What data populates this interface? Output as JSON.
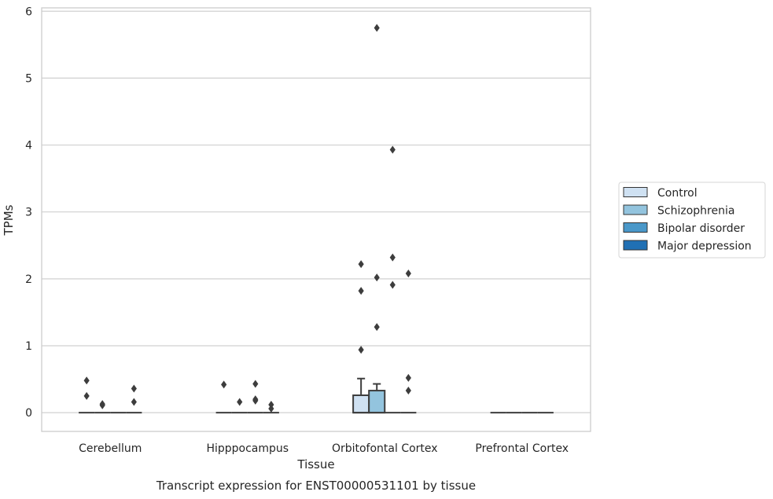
{
  "chart_data": {
    "type": "box",
    "title": "",
    "caption": "Transcript expression for ENST00000531101 by tissue",
    "xlabel": "Tissue",
    "ylabel": "TPMs",
    "ylim": [
      -0.28,
      6.05
    ],
    "yticks": [
      0,
      1,
      2,
      3,
      4,
      5,
      6
    ],
    "grid": true,
    "legend_position": "right",
    "categories": [
      "Cerebellum",
      "Hipppocampus",
      "Orbitofontal Cortex",
      "Prefrontal Cortex"
    ],
    "series": [
      {
        "name": "Control",
        "color": "#cfe1f2",
        "boxes": [
          {
            "q1": 0,
            "median": 0,
            "q3": 0,
            "whisker_low": 0,
            "whisker_high": 0,
            "outliers": [
              0.48,
              0.25
            ]
          },
          {
            "q1": 0,
            "median": 0,
            "q3": 0,
            "whisker_low": 0,
            "whisker_high": 0,
            "outliers": [
              0.42
            ]
          },
          {
            "q1": 0,
            "median": 0,
            "q3": 0.26,
            "whisker_low": 0,
            "whisker_high": 0.51,
            "outliers": [
              2.22,
              1.82,
              0.94
            ]
          },
          {
            "q1": 0,
            "median": 0,
            "q3": 0,
            "whisker_low": 0,
            "whisker_high": 0,
            "outliers": []
          }
        ]
      },
      {
        "name": "Schizophrenia",
        "color": "#93c4de",
        "boxes": [
          {
            "q1": 0,
            "median": 0,
            "q3": 0,
            "whisker_low": 0,
            "whisker_high": 0,
            "outliers": [
              0.13,
              0.11
            ]
          },
          {
            "q1": 0,
            "median": 0,
            "q3": 0,
            "whisker_low": 0,
            "whisker_high": 0,
            "outliers": [
              0.16
            ]
          },
          {
            "q1": 0,
            "median": 0,
            "q3": 0.33,
            "whisker_low": 0,
            "whisker_high": 0.43,
            "outliers": [
              5.75,
              2.02,
              1.28
            ]
          },
          {
            "q1": 0,
            "median": 0,
            "q3": 0,
            "whisker_low": 0,
            "whisker_high": 0,
            "outliers": []
          }
        ]
      },
      {
        "name": "Bipolar disorder",
        "color": "#4a98c9",
        "boxes": [
          {
            "q1": 0,
            "median": 0,
            "q3": 0,
            "whisker_low": 0,
            "whisker_high": 0,
            "outliers": []
          },
          {
            "q1": 0,
            "median": 0,
            "q3": 0,
            "whisker_low": 0,
            "whisker_high": 0,
            "outliers": [
              0.43,
              0.2,
              0.18
            ]
          },
          {
            "q1": 0,
            "median": 0,
            "q3": 0,
            "whisker_low": 0,
            "whisker_high": 0,
            "outliers": [
              3.93,
              2.32,
              1.91
            ]
          },
          {
            "q1": 0,
            "median": 0,
            "q3": 0,
            "whisker_low": 0,
            "whisker_high": 0,
            "outliers": []
          }
        ]
      },
      {
        "name": "Major depression",
        "color": "#2070b4",
        "boxes": [
          {
            "q1": 0,
            "median": 0,
            "q3": 0,
            "whisker_low": 0,
            "whisker_high": 0,
            "outliers": [
              0.36,
              0.16
            ]
          },
          {
            "q1": 0,
            "median": 0,
            "q3": 0,
            "whisker_low": 0,
            "whisker_high": 0,
            "outliers": [
              0.12,
              0.06
            ]
          },
          {
            "q1": 0,
            "median": 0,
            "q3": 0,
            "whisker_low": 0,
            "whisker_high": 0,
            "outliers": [
              2.08,
              0.52,
              0.33
            ]
          },
          {
            "q1": 0,
            "median": 0,
            "q3": 0,
            "whisker_low": 0,
            "whisker_high": 0,
            "outliers": []
          }
        ]
      }
    ]
  }
}
